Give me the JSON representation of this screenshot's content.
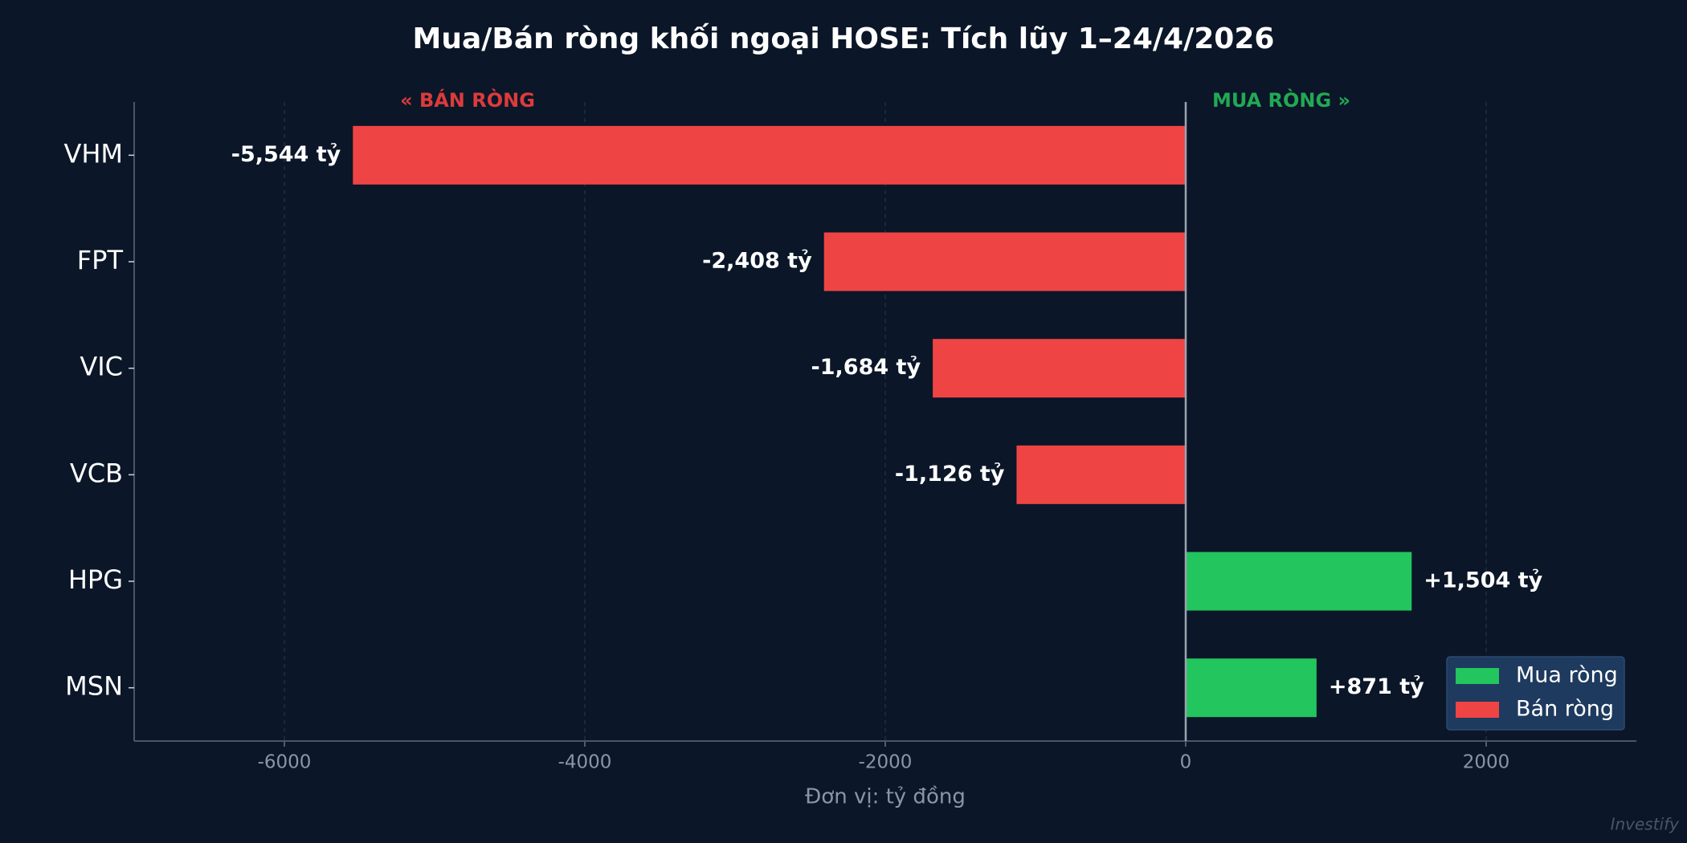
{
  "chart_data": {
    "type": "barh",
    "title": "Mua/Bán ròng khối ngoại HOSE: Tích lũy 1–24/4/2026",
    "xlabel": "Đơn vị: tỷ đồng",
    "annotations": [
      "« BÁN RÒNG",
      "MUA RÒNG »"
    ],
    "watermark": "Investify",
    "categories": [
      "VHM",
      "FPT",
      "VIC",
      "VCB",
      "HPG",
      "MSN"
    ],
    "values": [
      -5544,
      -2408,
      -1684,
      -1126,
      1504,
      871
    ],
    "value_labels": [
      "-5,544 tỷ",
      "-2,408 tỷ",
      "-1,684 tỷ",
      "-1,126 tỷ",
      "+1,504 tỷ",
      "+871 tỷ"
    ],
    "colors": [
      "#ef4444",
      "#ef4444",
      "#ef4444",
      "#ef4444",
      "#22c55e",
      "#22c55e"
    ],
    "legend": [
      {
        "name": "Mua ròng",
        "color": "#22c55e"
      },
      {
        "name": "Bán ròng",
        "color": "#ef4444"
      }
    ],
    "legend_position": "lower right",
    "xlim": [
      -7000,
      3000
    ],
    "xticks": [
      -6000,
      -4000,
      -2000,
      0,
      2000
    ],
    "grid": true
  }
}
